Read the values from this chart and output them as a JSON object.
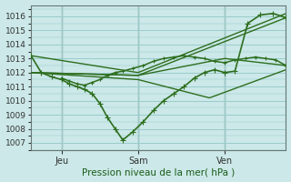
{
  "bg_color": "#cce8e8",
  "grid_color": "#99cccc",
  "line_color": "#2d6e1e",
  "ylabel": "Pression niveau de la mer( hPa )",
  "ylim": [
    1006.5,
    1016.8
  ],
  "yticks": [
    1007,
    1008,
    1009,
    1010,
    1011,
    1012,
    1013,
    1014,
    1015,
    1016
  ],
  "xtick_labels": [
    "Jeu",
    "Sam",
    "Ven"
  ],
  "vline_positions": [
    0.12,
    0.42,
    0.76
  ],
  "lines": [
    {
      "x": [
        0.0,
        0.04,
        0.08,
        0.12,
        0.15,
        0.18,
        0.21,
        0.24,
        0.27,
        0.3,
        0.33,
        0.36,
        0.4,
        0.44,
        0.48,
        0.52,
        0.56,
        0.6,
        0.64,
        0.68,
        0.72,
        0.76,
        0.8,
        0.85,
        0.9,
        0.95,
        1.0
      ],
      "y": [
        1013.2,
        1012.0,
        1011.7,
        1011.5,
        1011.2,
        1011.0,
        1010.8,
        1010.5,
        1009.8,
        1008.8,
        1008.0,
        1007.2,
        1007.8,
        1008.5,
        1009.3,
        1010.0,
        1010.5,
        1011.0,
        1011.6,
        1012.0,
        1012.2,
        1012.0,
        1012.1,
        1015.5,
        1016.1,
        1016.2,
        1015.9
      ],
      "marker": "+",
      "lw": 1.2,
      "ms": 4,
      "zorder": 4
    },
    {
      "x": [
        0.0,
        0.42,
        1.0
      ],
      "y": [
        1013.2,
        1012.0,
        1016.2
      ],
      "marker": null,
      "lw": 1.0,
      "ms": 0,
      "zorder": 3
    },
    {
      "x": [
        0.0,
        0.42,
        1.0
      ],
      "y": [
        1012.0,
        1011.8,
        1015.9
      ],
      "marker": null,
      "lw": 1.0,
      "ms": 0,
      "zorder": 3
    },
    {
      "x": [
        0.0,
        0.42,
        0.76,
        1.0
      ],
      "y": [
        1012.0,
        1011.8,
        1013.0,
        1012.5
      ],
      "marker": null,
      "lw": 1.0,
      "ms": 0,
      "zorder": 3
    },
    {
      "x": [
        0.0,
        0.42,
        0.7,
        1.0
      ],
      "y": [
        1012.0,
        1011.5,
        1010.2,
        1012.2
      ],
      "marker": null,
      "lw": 1.0,
      "ms": 0,
      "zorder": 3
    },
    {
      "x": [
        0.12,
        0.15,
        0.18,
        0.21,
        0.24,
        0.27,
        0.3,
        0.33,
        0.36,
        0.4,
        0.44,
        0.48,
        0.52,
        0.56,
        0.6,
        0.64,
        0.68,
        0.72,
        0.76,
        0.8,
        0.84,
        0.88,
        0.92,
        0.96,
        1.0
      ],
      "y": [
        1011.6,
        1011.4,
        1011.2,
        1011.1,
        1011.3,
        1011.5,
        1011.8,
        1012.0,
        1012.1,
        1012.3,
        1012.5,
        1012.8,
        1013.0,
        1013.1,
        1013.2,
        1013.1,
        1013.0,
        1012.8,
        1012.7,
        1012.9,
        1013.0,
        1013.1,
        1013.0,
        1012.9,
        1012.5
      ],
      "marker": "+",
      "lw": 1.1,
      "ms": 3.5,
      "zorder": 4
    }
  ]
}
